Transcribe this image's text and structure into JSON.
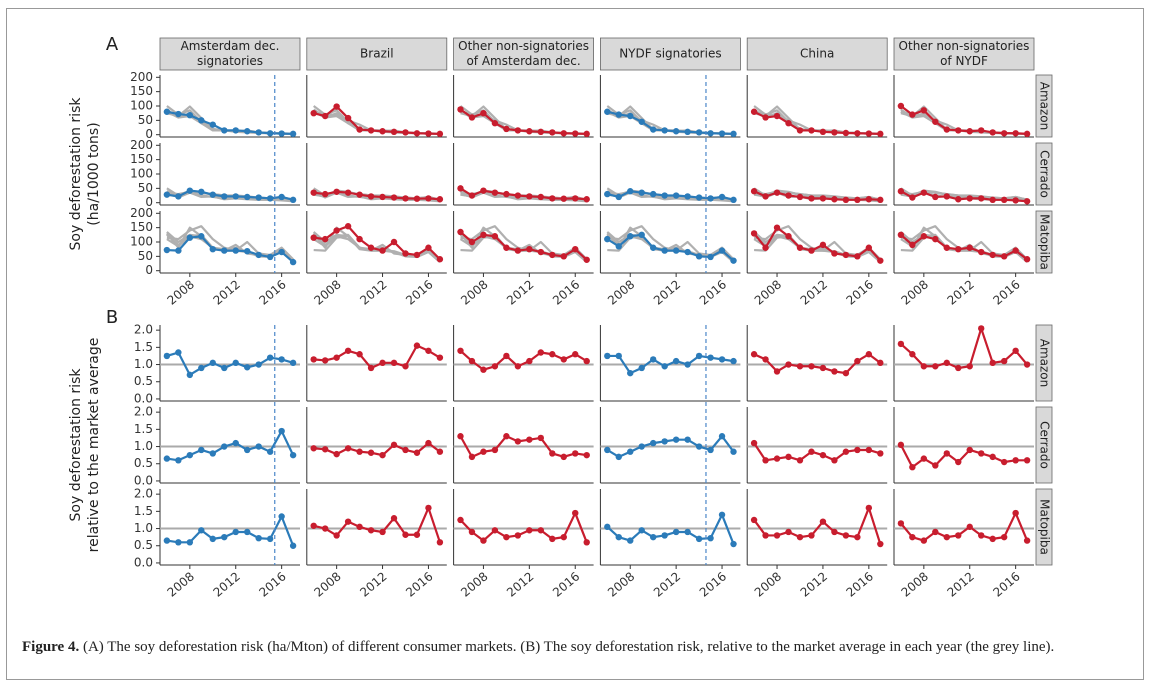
{
  "figure_caption": {
    "label": "Figure 4.",
    "text": "(A) The soy deforestation risk (ha/Mton) of different consumer markets. (B) The soy deforestation risk, relative to the market average in each year (the grey line)."
  },
  "chart_data": [
    {
      "type": "line",
      "panel_label": "A",
      "y_label": [
        "Soy deforestation risk",
        "(ha/1000 tons)"
      ],
      "rows": [
        "Amazon",
        "Cerrado",
        "Matopiba"
      ],
      "x": [
        2006,
        2007,
        2008,
        2009,
        2010,
        2011,
        2012,
        2013,
        2014,
        2015,
        2016,
        2017
      ],
      "xlim": [
        2005.4,
        2017.6
      ],
      "xticks": [
        2008,
        2012,
        2016
      ],
      "ylim": [
        -8,
        208
      ],
      "yticks": [
        0,
        50,
        100,
        150,
        200
      ],
      "grey_other_markets": true,
      "columns": [
        {
          "label": [
            "Amsterdam dec.",
            "signatories"
          ],
          "color": "#2b7bb9",
          "event_x": 2015.4,
          "values": [
            [
              80,
              72,
              68,
              50,
              35,
              15,
              15,
              12,
              8,
              5,
              4,
              3
            ],
            [
              28,
              22,
              42,
              38,
              28,
              22,
              22,
              20,
              18,
              15,
              20,
              10
            ],
            [
              72,
              70,
              115,
              120,
              75,
              70,
              70,
              68,
              55,
              48,
              65,
              30
            ]
          ]
        },
        {
          "label": [
            "Brazil"
          ],
          "color": "#c81d2e",
          "values": [
            [
              75,
              65,
              98,
              58,
              18,
              15,
              12,
              10,
              8,
              5,
              4,
              3
            ],
            [
              35,
              30,
              38,
              35,
              28,
              22,
              20,
              18,
              15,
              14,
              15,
              12
            ],
            [
              115,
              110,
              140,
              155,
              110,
              80,
              70,
              100,
              60,
              55,
              80,
              40
            ]
          ]
        },
        {
          "label": [
            "Other non-signatories",
            "of Amsterdam dec."
          ],
          "color": "#c81d2e",
          "values": [
            [
              88,
              60,
              75,
              40,
              20,
              15,
              12,
              10,
              8,
              5,
              4,
              3
            ],
            [
              50,
              25,
              42,
              35,
              30,
              25,
              22,
              20,
              15,
              14,
              15,
              12
            ],
            [
              135,
              100,
              125,
              120,
              80,
              70,
              75,
              65,
              55,
              50,
              75,
              38
            ]
          ]
        },
        {
          "label": [
            "NYDF signatories"
          ],
          "color": "#2b7bb9",
          "event_x": 2014.6,
          "values": [
            [
              80,
              70,
              65,
              45,
              18,
              15,
              12,
              10,
              8,
              5,
              4,
              3
            ],
            [
              30,
              20,
              40,
              35,
              30,
              25,
              25,
              22,
              18,
              15,
              20,
              10
            ],
            [
              110,
              85,
              120,
              125,
              80,
              70,
              70,
              65,
              50,
              48,
              70,
              35
            ]
          ]
        },
        {
          "label": [
            "China"
          ],
          "color": "#c81d2e",
          "values": [
            [
              80,
              60,
              65,
              40,
              15,
              15,
              10,
              8,
              6,
              5,
              4,
              3
            ],
            [
              40,
              22,
              35,
              25,
              20,
              15,
              15,
              12,
              10,
              10,
              12,
              10
            ],
            [
              130,
              80,
              150,
              120,
              80,
              70,
              90,
              60,
              55,
              50,
              80,
              35
            ]
          ]
        },
        {
          "label": [
            "Other non-signatories",
            "of NYDF"
          ],
          "color": "#c81d2e",
          "values": [
            [
              100,
              70,
              85,
              45,
              18,
              15,
              12,
              15,
              8,
              5,
              5,
              3
            ],
            [
              40,
              18,
              35,
              20,
              22,
              12,
              15,
              15,
              10,
              10,
              8,
              5
            ],
            [
              125,
              90,
              120,
              110,
              80,
              75,
              80,
              65,
              55,
              50,
              70,
              40
            ]
          ]
        }
      ]
    },
    {
      "type": "line",
      "panel_label": "B",
      "y_label": [
        "Soy deforestation risk",
        "relative to the market average"
      ],
      "rows": [
        "Amazon",
        "Cerrado",
        "Matopiba"
      ],
      "x": [
        2006,
        2007,
        2008,
        2009,
        2010,
        2011,
        2012,
        2013,
        2014,
        2015,
        2016,
        2017
      ],
      "xlim": [
        2005.4,
        2017.6
      ],
      "xticks": [
        2008,
        2012,
        2016
      ],
      "ylim": [
        -0.06,
        2.15
      ],
      "yticks": [
        {
          "value": 0,
          "label": "0.0"
        },
        0.5,
        {
          "value": 1,
          "label": "1.0"
        },
        1.5,
        {
          "value": 2,
          "label": "2.0"
        }
      ],
      "reference_y": 1,
      "columns": [
        {
          "color": "#2b7bb9",
          "event_x": 2015.4,
          "values": [
            [
              1.25,
              1.35,
              0.7,
              0.9,
              1.05,
              0.9,
              1.05,
              0.92,
              1.0,
              1.2,
              1.15,
              1.05
            ],
            [
              0.65,
              0.6,
              0.75,
              0.9,
              0.8,
              1.0,
              1.1,
              0.9,
              1.0,
              0.85,
              1.45,
              0.75
            ],
            [
              0.65,
              0.6,
              0.6,
              0.95,
              0.7,
              0.75,
              0.9,
              0.9,
              0.72,
              0.7,
              1.35,
              0.5
            ]
          ]
        },
        {
          "color": "#c81d2e",
          "values": [
            [
              1.15,
              1.12,
              1.2,
              1.4,
              1.3,
              0.9,
              1.05,
              1.05,
              0.95,
              1.55,
              1.4,
              1.2
            ],
            [
              0.95,
              0.92,
              0.78,
              0.95,
              0.85,
              0.82,
              0.75,
              1.05,
              0.9,
              0.82,
              1.1,
              0.85
            ],
            [
              1.08,
              1.0,
              0.8,
              1.2,
              1.05,
              0.95,
              0.9,
              1.3,
              0.82,
              0.82,
              1.6,
              0.6
            ]
          ]
        },
        {
          "color": "#c81d2e",
          "values": [
            [
              1.4,
              1.1,
              0.85,
              0.95,
              1.25,
              0.95,
              1.1,
              1.35,
              1.3,
              1.15,
              1.3,
              1.1
            ],
            [
              1.3,
              0.7,
              0.85,
              0.9,
              1.3,
              1.15,
              1.2,
              1.25,
              0.8,
              0.7,
              0.8,
              0.75
            ],
            [
              1.25,
              0.9,
              0.65,
              0.95,
              0.75,
              0.8,
              0.95,
              0.95,
              0.7,
              0.75,
              1.45,
              0.6
            ]
          ]
        },
        {
          "color": "#2b7bb9",
          "event_x": 2014.6,
          "values": [
            [
              1.25,
              1.25,
              0.75,
              0.9,
              1.15,
              0.95,
              1.1,
              1.0,
              1.25,
              1.2,
              1.15,
              1.1
            ],
            [
              0.9,
              0.7,
              0.85,
              1.0,
              1.1,
              1.15,
              1.2,
              1.2,
              1.0,
              0.9,
              1.3,
              0.85
            ],
            [
              1.05,
              0.75,
              0.65,
              0.95,
              0.75,
              0.8,
              0.9,
              0.9,
              0.7,
              0.72,
              1.4,
              0.55
            ]
          ]
        },
        {
          "color": "#c81d2e",
          "values": [
            [
              1.3,
              1.15,
              0.8,
              1.0,
              0.95,
              0.95,
              0.9,
              0.8,
              0.75,
              1.1,
              1.3,
              1.05
            ],
            [
              1.1,
              0.6,
              0.65,
              0.7,
              0.6,
              0.85,
              0.75,
              0.6,
              0.85,
              0.9,
              0.9,
              0.8
            ],
            [
              1.25,
              0.8,
              0.8,
              0.9,
              0.75,
              0.8,
              1.2,
              0.9,
              0.8,
              0.75,
              1.6,
              0.55
            ]
          ]
        },
        {
          "color": "#c81d2e",
          "values": [
            [
              1.6,
              1.3,
              0.95,
              0.95,
              1.05,
              0.9,
              0.95,
              2.05,
              1.05,
              1.1,
              1.4,
              1.0
            ],
            [
              1.05,
              0.4,
              0.65,
              0.45,
              0.8,
              0.55,
              0.9,
              0.8,
              0.7,
              0.55,
              0.6,
              0.6
            ],
            [
              1.15,
              0.75,
              0.65,
              0.9,
              0.75,
              0.8,
              1.05,
              0.8,
              0.7,
              0.75,
              1.45,
              0.65
            ]
          ]
        }
      ]
    }
  ]
}
